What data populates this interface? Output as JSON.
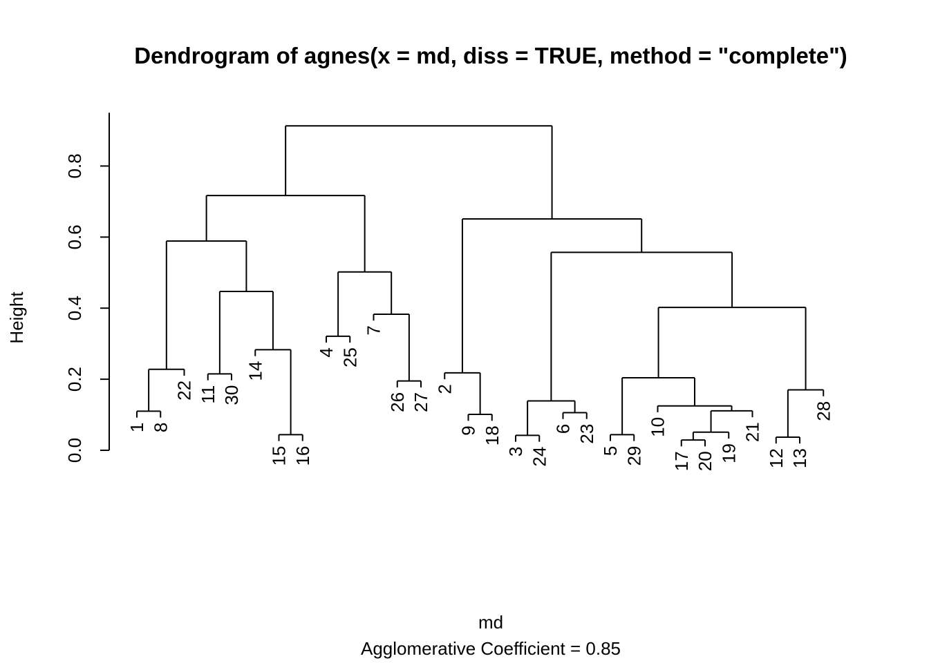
{
  "chart_data": {
    "type": "dendrogram",
    "title": "Dendrogram of  agnes(x = md, diss = TRUE, method = \"complete\")",
    "xlabel": "md",
    "sublabel": "Agglomerative Coefficient =  0.85",
    "ylabel": "Height",
    "ylim": [
      0,
      0.95
    ],
    "yticks": [
      {
        "value": 0.0,
        "label": "0.0"
      },
      {
        "value": 0.2,
        "label": "0.2"
      },
      {
        "value": 0.4,
        "label": "0.4"
      },
      {
        "value": 0.6,
        "label": "0.6"
      },
      {
        "value": 0.8,
        "label": "0.8"
      }
    ],
    "leaf_order": [
      "1",
      "8",
      "22",
      "11",
      "30",
      "14",
      "15",
      "16",
      "4",
      "25",
      "7",
      "26",
      "27",
      "2",
      "9",
      "18",
      "3",
      "24",
      "6",
      "23",
      "5",
      "29",
      "10",
      "17",
      "20",
      "19",
      "21",
      "12",
      "13",
      "28"
    ],
    "merges": [
      {
        "left": "1",
        "right": "8",
        "height": 0.11
      },
      {
        "left": "15",
        "right": "16",
        "height": 0.044
      },
      {
        "left": "11",
        "right": "30",
        "height": 0.215
      },
      {
        "left": "14",
        "right": [
          "15",
          "16"
        ],
        "height": 0.283
      },
      {
        "left": [
          "1",
          "8"
        ],
        "right": "22",
        "height": 0.228
      },
      {
        "left": [
          "11",
          "30"
        ],
        "right": [
          "14",
          "15",
          "16"
        ],
        "height": 0.447
      },
      {
        "left": [
          "1",
          "8",
          "22"
        ],
        "right": [
          "11",
          "30",
          "14",
          "15",
          "16"
        ],
        "height": 0.589
      },
      {
        "left": "4",
        "right": "25",
        "height": 0.321
      },
      {
        "left": "26",
        "right": "27",
        "height": 0.195
      },
      {
        "left": "7",
        "right": [
          "26",
          "27"
        ],
        "height": 0.383
      },
      {
        "left": [
          "4",
          "25"
        ],
        "right": [
          "7",
          "26",
          "27"
        ],
        "height": 0.502
      },
      {
        "left": [
          "1",
          "8",
          "22",
          "11",
          "30",
          "14",
          "15",
          "16"
        ],
        "right": [
          "4",
          "25",
          "7",
          "26",
          "27"
        ],
        "height": 0.717
      },
      {
        "left": "9",
        "right": "18",
        "height": 0.101
      },
      {
        "left": "2",
        "right": [
          "9",
          "18"
        ],
        "height": 0.218
      },
      {
        "left": "3",
        "right": "24",
        "height": 0.042
      },
      {
        "left": "6",
        "right": "23",
        "height": 0.106
      },
      {
        "left": [
          "3",
          "24"
        ],
        "right": [
          "6",
          "23"
        ],
        "height": 0.139
      },
      {
        "left": "5",
        "right": "29",
        "height": 0.044
      },
      {
        "left": "17",
        "right": "20",
        "height": 0.029
      },
      {
        "left": [
          "17",
          "20"
        ],
        "right": "19",
        "height": 0.051
      },
      {
        "left": [
          "17",
          "20",
          "19"
        ],
        "right": "21",
        "height": 0.111
      },
      {
        "left": "10",
        "right": [
          "17",
          "20",
          "19",
          "21"
        ],
        "height": 0.125
      },
      {
        "left": [
          "5",
          "29"
        ],
        "right": [
          "10",
          "17",
          "20",
          "19",
          "21"
        ],
        "height": 0.204
      },
      {
        "left": "12",
        "right": "13",
        "height": 0.037
      },
      {
        "left": [
          "12",
          "13"
        ],
        "right": "28",
        "height": 0.17
      },
      {
        "left": [
          "5",
          "29",
          "10",
          "17",
          "20",
          "19",
          "21"
        ],
        "right": [
          "12",
          "13",
          "28"
        ],
        "height": 0.402
      },
      {
        "left": [
          "3",
          "24",
          "6",
          "23"
        ],
        "right": [
          "5",
          "29",
          "10",
          "17",
          "20",
          "19",
          "21",
          "12",
          "13",
          "28"
        ],
        "height": 0.557
      },
      {
        "left": [
          "2",
          "9",
          "18"
        ],
        "right": [
          "3",
          "24",
          "6",
          "23",
          "5",
          "29",
          "10",
          "17",
          "20",
          "19",
          "21",
          "12",
          "13",
          "28"
        ],
        "height": 0.651
      },
      {
        "left": [
          "1",
          "8",
          "22",
          "11",
          "30",
          "14",
          "15",
          "16",
          "4",
          "25",
          "7",
          "26",
          "27"
        ],
        "right": [
          "2",
          "9",
          "18",
          "3",
          "24",
          "6",
          "23",
          "5",
          "29",
          "10",
          "17",
          "20",
          "19",
          "21",
          "12",
          "13",
          "28"
        ],
        "height": 0.913
      }
    ]
  }
}
